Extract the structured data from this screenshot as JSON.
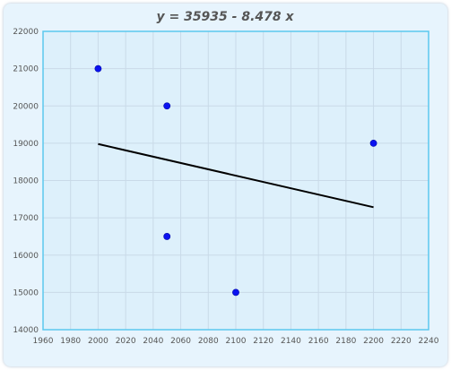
{
  "chart_data": {
    "type": "scatter",
    "title": "y = 35935 - 8.478 x",
    "xlim": [
      1960,
      2240
    ],
    "ylim": [
      14000,
      22000
    ],
    "x_ticks": [
      1960,
      1980,
      2000,
      2020,
      2040,
      2060,
      2080,
      2100,
      2120,
      2140,
      2160,
      2180,
      2200,
      2220,
      2240
    ],
    "y_ticks": [
      14000,
      15000,
      16000,
      17000,
      18000,
      19000,
      20000,
      21000,
      22000
    ],
    "grid": true,
    "series": [
      {
        "values": [
          {
            "x": 2000,
            "y": 21000
          },
          {
            "x": 2050,
            "y": 20000
          },
          {
            "x": 2050,
            "y": 16500
          },
          {
            "x": 2100,
            "y": 15000
          },
          {
            "x": 2200,
            "y": 19000
          }
        ]
      }
    ],
    "trendline": {
      "intercept": 35935,
      "slope": -8.478,
      "x_start": 2000,
      "x_end": 2200
    },
    "colors": {
      "background": "#e7f4fd",
      "plot_background": "#ddf0fb",
      "plot_border": "#5bc8ee",
      "grid": "#c9dae8",
      "point": "#0a12f0",
      "trendline": "#000000"
    }
  }
}
